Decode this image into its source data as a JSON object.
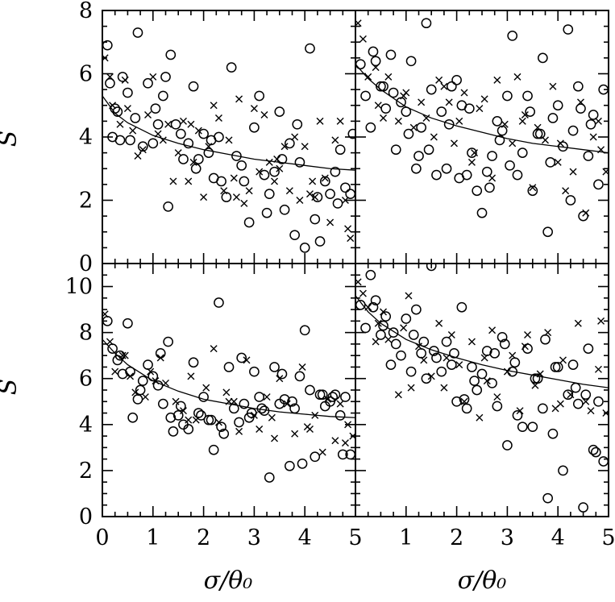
{
  "chart_data": [
    {
      "type": "scatter",
      "panel": "top-left",
      "xlim": [
        0,
        5
      ],
      "ylim": [
        0,
        8
      ],
      "xticks": [],
      "yticks": [
        "0",
        "2",
        "4",
        "6",
        "8"
      ],
      "ylabel": "S",
      "xlabel": "",
      "fit": {
        "x": [
          0,
          0.25,
          0.5,
          1,
          1.5,
          2,
          2.5,
          3,
          3.5,
          4,
          4.5,
          5
        ],
        "y": [
          5.3,
          4.75,
          4.45,
          4.05,
          3.8,
          3.6,
          3.45,
          3.3,
          3.2,
          3.1,
          3.0,
          2.95
        ]
      },
      "series": [
        {
          "marker": "circle",
          "x": [
            0.1,
            0.15,
            0.2,
            0.3,
            0.4,
            0.5,
            0.55,
            0.7,
            0.8,
            0.9,
            1.0,
            1.05,
            1.2,
            1.3,
            1.35,
            1.45,
            1.55,
            1.7,
            1.8,
            1.9,
            2.0,
            2.1,
            2.2,
            2.3,
            2.45,
            2.55,
            2.65,
            2.8,
            2.9,
            3.0,
            3.1,
            3.2,
            3.3,
            3.4,
            3.5,
            3.6,
            3.7,
            3.8,
            3.9,
            4.0,
            4.1,
            4.2,
            4.3,
            4.4,
            4.5,
            4.6,
            4.7,
            4.8,
            4.9,
            4.95,
            0.35,
            0.65,
            1.1,
            1.6,
            2.35,
            3.55,
            4.25,
            1.25,
            2.75,
            3.85,
            0.25,
            1.85,
            2.15,
            3.25,
            4.65
          ],
          "y": [
            6.9,
            5.7,
            4.0,
            4.8,
            5.9,
            5.4,
            3.9,
            7.3,
            3.7,
            5.7,
            3.8,
            4.9,
            5.3,
            1.8,
            6.6,
            4.4,
            4.1,
            3.8,
            5.6,
            3.3,
            4.1,
            3.5,
            2.7,
            4.0,
            2.1,
            6.2,
            3.4,
            2.6,
            1.3,
            4.3,
            5.3,
            2.8,
            2.2,
            2.9,
            4.8,
            1.7,
            3.8,
            0.9,
            3.2,
            0.5,
            6.8,
            1.4,
            0.7,
            2.6,
            2.2,
            2.9,
            3.6,
            2.4,
            2.2,
            4.1,
            3.9,
            4.6,
            4.4,
            3.3,
            2.6,
            3.3,
            2.1,
            5.9,
            3.1,
            4.4,
            4.9,
            3.0,
            3.9,
            1.6,
            1.9
          ]
        },
        {
          "marker": "cross",
          "x": [
            0.05,
            0.15,
            0.2,
            0.35,
            0.45,
            0.5,
            0.6,
            0.8,
            0.9,
            1.0,
            1.1,
            1.2,
            1.3,
            1.4,
            1.5,
            1.6,
            1.7,
            1.8,
            1.9,
            2.0,
            2.1,
            2.2,
            2.3,
            2.4,
            2.5,
            2.6,
            2.7,
            2.8,
            2.9,
            3.0,
            3.1,
            3.2,
            3.3,
            3.4,
            3.5,
            3.6,
            3.7,
            3.8,
            3.9,
            4.0,
            4.1,
            4.2,
            4.3,
            4.4,
            4.5,
            4.6,
            4.7,
            4.8,
            4.9,
            0.7,
            1.75,
            2.65,
            3.45,
            4.15,
            4.85
          ],
          "y": [
            6.5,
            5.9,
            5.0,
            4.4,
            5.8,
            4.9,
            4.2,
            3.6,
            4.7,
            5.9,
            4.1,
            3.9,
            4.4,
            2.6,
            3.5,
            4.5,
            2.6,
            3.2,
            4.2,
            2.1,
            3.7,
            5.0,
            4.6,
            2.3,
            3.9,
            2.7,
            5.2,
            1.9,
            2.3,
            4.9,
            2.9,
            4.7,
            3.2,
            2.6,
            3.0,
            3.7,
            2.3,
            4.0,
            2.0,
            3.7,
            2.2,
            2.1,
            4.5,
            2.7,
            1.3,
            3.9,
            4.5,
            2.0,
            0.8,
            3.4,
            4.4,
            2.1,
            3.3,
            2.6,
            1.1
          ]
        }
      ]
    },
    {
      "type": "scatter",
      "panel": "top-right",
      "xlim": [
        0,
        5
      ],
      "ylim": [
        0,
        8
      ],
      "xticks": [],
      "yticks": [],
      "fit": {
        "x": [
          0,
          0.25,
          0.5,
          1,
          1.5,
          2,
          2.5,
          3,
          3.5,
          4,
          4.5,
          5
        ],
        "y": [
          6.3,
          5.85,
          5.5,
          4.95,
          4.6,
          4.35,
          4.15,
          3.95,
          3.8,
          3.7,
          3.6,
          3.5
        ]
      },
      "series": [
        {
          "marker": "circle",
          "x": [
            0.1,
            0.2,
            0.3,
            0.4,
            0.5,
            0.6,
            0.7,
            0.8,
            0.9,
            1.0,
            1.1,
            1.2,
            1.3,
            1.4,
            1.5,
            1.6,
            1.7,
            1.8,
            1.9,
            2.0,
            2.1,
            2.2,
            2.3,
            2.4,
            2.5,
            2.6,
            2.7,
            2.8,
            2.9,
            3.0,
            3.1,
            3.2,
            3.3,
            3.4,
            3.5,
            3.6,
            3.7,
            3.8,
            3.9,
            4.0,
            4.1,
            4.2,
            4.3,
            4.4,
            4.5,
            4.6,
            4.7,
            4.8,
            4.9,
            0.35,
            0.75,
            1.05,
            1.45,
            1.85,
            2.25,
            2.65,
            3.05,
            3.45,
            3.85,
            4.25,
            4.65,
            0.55,
            1.25,
            2.05,
            2.85,
            3.65,
            4.45
          ],
          "y": [
            6.3,
            5.3,
            4.3,
            6.4,
            5.6,
            4.9,
            6.6,
            3.6,
            5.1,
            4.8,
            6.4,
            3.0,
            4.3,
            7.6,
            5.5,
            2.8,
            4.8,
            3.0,
            5.6,
            5.8,
            5.0,
            2.8,
            3.5,
            2.3,
            1.6,
            2.9,
            3.4,
            4.5,
            4.2,
            5.3,
            7.2,
            2.8,
            3.5,
            5.3,
            2.3,
            4.1,
            6.5,
            1.0,
            4.6,
            5.0,
            3.7,
            7.4,
            4.2,
            5.6,
            1.5,
            3.4,
            4.7,
            2.5,
            5.5,
            6.7,
            5.4,
            4.1,
            3.6,
            4.4,
            4.9,
            2.4,
            3.1,
            4.8,
            3.2,
            2.0,
            4.4,
            5.6,
            3.4,
            2.7,
            3.9,
            4.1,
            4.9
          ]
        },
        {
          "marker": "cross",
          "x": [
            0.05,
            0.15,
            0.25,
            0.45,
            0.55,
            0.65,
            0.85,
            0.95,
            1.15,
            1.3,
            1.4,
            1.55,
            1.65,
            1.75,
            1.95,
            2.05,
            2.15,
            2.3,
            2.45,
            2.55,
            2.7,
            2.8,
            2.95,
            3.1,
            3.2,
            3.35,
            3.5,
            3.6,
            3.75,
            3.9,
            4.0,
            4.15,
            4.3,
            4.45,
            4.55,
            4.7,
            4.85,
            4.95,
            0.4,
            1.0,
            1.85,
            2.35,
            3.3,
            4.05,
            4.8
          ],
          "y": [
            7.6,
            7.1,
            5.9,
            5.0,
            4.6,
            5.9,
            4.5,
            5.3,
            4.3,
            5.1,
            4.6,
            4.0,
            5.8,
            5.6,
            3.8,
            4.5,
            5.4,
            3.2,
            4.9,
            5.2,
            2.7,
            5.8,
            4.4,
            3.8,
            5.9,
            4.7,
            2.4,
            4.3,
            3.9,
            5.6,
            3.2,
            2.3,
            2.9,
            5.1,
            1.6,
            4.0,
            3.6,
            2.9,
            6.2,
            5.4,
            5.1,
            3.5,
            4.5,
            3.8,
            4.5
          ]
        }
      ]
    },
    {
      "type": "scatter",
      "panel": "bottom-left",
      "xlim": [
        0,
        5
      ],
      "ylim": [
        0,
        11
      ],
      "xticks": [
        "0",
        "1",
        "2",
        "3",
        "4",
        "5"
      ],
      "yticks": [
        "0",
        "2",
        "4",
        "6",
        "8",
        "10"
      ],
      "ylabel": "S",
      "xlabel": "σ/θ₀",
      "fit": {
        "x": [
          0,
          0.25,
          0.5,
          1,
          1.5,
          2,
          2.5,
          3,
          3.5,
          4,
          4.5,
          5
        ],
        "y": [
          7.7,
          7.1,
          6.6,
          5.9,
          5.45,
          5.1,
          4.9,
          4.7,
          4.55,
          4.45,
          4.35,
          4.3
        ]
      },
      "series": [
        {
          "marker": "circle",
          "x": [
            0.1,
            0.2,
            0.3,
            0.4,
            0.5,
            0.6,
            0.7,
            0.8,
            0.9,
            1.0,
            1.1,
            1.2,
            1.3,
            1.4,
            1.5,
            1.6,
            1.7,
            1.8,
            1.9,
            2.0,
            2.1,
            2.2,
            2.3,
            2.4,
            2.5,
            2.6,
            2.7,
            2.8,
            2.9,
            3.0,
            3.1,
            3.2,
            3.3,
            3.4,
            3.5,
            3.6,
            3.7,
            3.8,
            3.9,
            4.0,
            4.1,
            4.2,
            4.3,
            4.4,
            4.5,
            4.6,
            4.7,
            4.8,
            4.9,
            0.35,
            0.75,
            1.15,
            1.55,
            1.95,
            2.35,
            2.75,
            3.15,
            3.55,
            3.95,
            4.35,
            4.75,
            0.55,
            1.35,
            2.15,
            2.95,
            3.75,
            4.55
          ],
          "y": [
            8.5,
            7.3,
            6.8,
            6.2,
            8.4,
            4.3,
            5.1,
            5.9,
            6.6,
            6.1,
            5.7,
            4.9,
            7.6,
            3.7,
            4.4,
            4.0,
            3.8,
            6.7,
            4.5,
            5.2,
            4.2,
            2.9,
            9.3,
            3.6,
            6.5,
            4.7,
            4.1,
            4.9,
            4.3,
            6.3,
            5.2,
            4.6,
            1.7,
            6.5,
            4.9,
            5.1,
            2.2,
            4.7,
            6.1,
            8.1,
            5.5,
            2.6,
            5.3,
            4.8,
            5.0,
            5.3,
            4.4,
            5.2,
            2.7,
            7.0,
            5.5,
            7.1,
            4.8,
            4.4,
            3.9,
            6.9,
            4.7,
            6.2,
            2.3,
            5.3,
            2.7,
            6.3,
            4.3,
            4.2,
            4.5,
            5.0,
            5.2
          ]
        },
        {
          "marker": "cross",
          "x": [
            0.05,
            0.15,
            0.25,
            0.45,
            0.55,
            0.65,
            0.85,
            0.95,
            1.15,
            1.25,
            1.45,
            1.6,
            1.75,
            1.85,
            2.05,
            2.2,
            2.3,
            2.45,
            2.6,
            2.7,
            2.85,
            3.0,
            3.1,
            3.25,
            3.4,
            3.5,
            3.65,
            3.8,
            3.95,
            4.05,
            4.2,
            4.35,
            4.45,
            4.6,
            4.7,
            4.85,
            4.95,
            0.4,
            1.05,
            1.7,
            2.5,
            3.35,
            4.1,
            4.8
          ],
          "y": [
            8.8,
            7.6,
            6.3,
            7.0,
            6.1,
            5.4,
            5.2,
            6.3,
            6.9,
            5.8,
            5.0,
            4.6,
            6.1,
            4.2,
            5.6,
            7.3,
            4.1,
            5.4,
            5.0,
            3.7,
            6.8,
            4.4,
            3.8,
            5.2,
            3.4,
            6.0,
            4.9,
            3.6,
            6.5,
            3.9,
            4.4,
            2.8,
            5.1,
            3.3,
            4.9,
            4.0,
            3.5,
            7.0,
            5.9,
            4.2,
            5.0,
            4.3,
            3.8,
            3.2
          ]
        }
      ]
    },
    {
      "type": "scatter",
      "panel": "bottom-right",
      "xlim": [
        0,
        5
      ],
      "ylim": [
        0,
        11
      ],
      "xticks": [
        "1",
        "2",
        "3",
        "4",
        "5"
      ],
      "yticks": [],
      "xlabel": "σ/θ₀",
      "fit": {
        "x": [
          0,
          0.25,
          0.5,
          1,
          1.5,
          2,
          2.5,
          3,
          3.5,
          4,
          4.5,
          5
        ],
        "y": [
          9.6,
          8.9,
          8.4,
          7.7,
          7.25,
          6.9,
          6.6,
          6.35,
          6.15,
          5.95,
          5.75,
          5.6
        ]
      },
      "series": [
        {
          "marker": "circle",
          "x": [
            0.1,
            0.2,
            0.3,
            0.4,
            0.5,
            0.6,
            0.7,
            0.8,
            0.9,
            1.0,
            1.1,
            1.2,
            1.3,
            1.4,
            1.5,
            1.6,
            1.7,
            1.8,
            1.9,
            2.0,
            2.1,
            2.2,
            2.3,
            2.4,
            2.5,
            2.6,
            2.7,
            2.8,
            2.9,
            3.0,
            3.1,
            3.2,
            3.3,
            3.4,
            3.5,
            3.6,
            3.7,
            3.8,
            3.9,
            4.0,
            4.1,
            4.2,
            4.3,
            4.4,
            4.5,
            4.6,
            4.7,
            4.8,
            4.9,
            0.35,
            0.75,
            1.15,
            1.55,
            1.95,
            2.35,
            2.75,
            3.15,
            3.55,
            3.95,
            4.35,
            4.75,
            0.55,
            1.35,
            2.15,
            2.95,
            3.75,
            4.55
          ],
          "y": [
            9.2,
            8.2,
            10.5,
            9.4,
            7.9,
            8.7,
            6.6,
            7.5,
            7.0,
            8.6,
            6.3,
            9.0,
            7.1,
            6.0,
            10.9,
            6.9,
            6.3,
            7.6,
            6.6,
            5.0,
            9.1,
            4.7,
            6.5,
            5.5,
            6.2,
            7.2,
            5.8,
            4.8,
            7.8,
            3.1,
            6.3,
            4.4,
            3.9,
            7.3,
            3.9,
            6.0,
            4.7,
            0.8,
            3.6,
            6.5,
            2.0,
            5.3,
            6.6,
            4.9,
            0.4,
            7.3,
            2.9,
            5.0,
            2.4,
            9.1,
            8.0,
            7.9,
            7.2,
            7.1,
            5.9,
            7.1,
            6.7,
            6.0,
            6.5,
            5.6,
            2.8,
            8.3,
            7.6,
            5.1,
            7.5,
            7.7,
            5.3
          ]
        },
        {
          "marker": "cross",
          "x": [
            0.05,
            0.15,
            0.25,
            0.45,
            0.55,
            0.65,
            0.85,
            0.95,
            1.05,
            1.25,
            1.35,
            1.5,
            1.65,
            1.75,
            1.9,
            2.05,
            2.15,
            2.3,
            2.45,
            2.55,
            2.7,
            2.8,
            3.0,
            3.1,
            3.25,
            3.4,
            3.55,
            3.65,
            3.8,
            3.95,
            4.1,
            4.25,
            4.4,
            4.55,
            4.65,
            4.8,
            4.95,
            0.4,
            1.1,
            1.8,
            2.6,
            3.35,
            4.05,
            4.85
          ],
          "y": [
            10.2,
            9.7,
            9.1,
            8.4,
            8.9,
            7.7,
            5.3,
            8.2,
            9.6,
            7.4,
            6.8,
            6.1,
            8.4,
            5.6,
            7.9,
            6.6,
            5.0,
            7.6,
            4.3,
            6.9,
            8.1,
            5.2,
            6.3,
            7.0,
            4.6,
            7.9,
            5.7,
            6.2,
            8.0,
            4.7,
            6.8,
            5.3,
            8.4,
            5.0,
            4.6,
            6.4,
            4.5,
            7.6,
            5.6,
            6.9,
            5.9,
            7.4,
            4.9,
            8.5
          ]
        }
      ]
    }
  ]
}
